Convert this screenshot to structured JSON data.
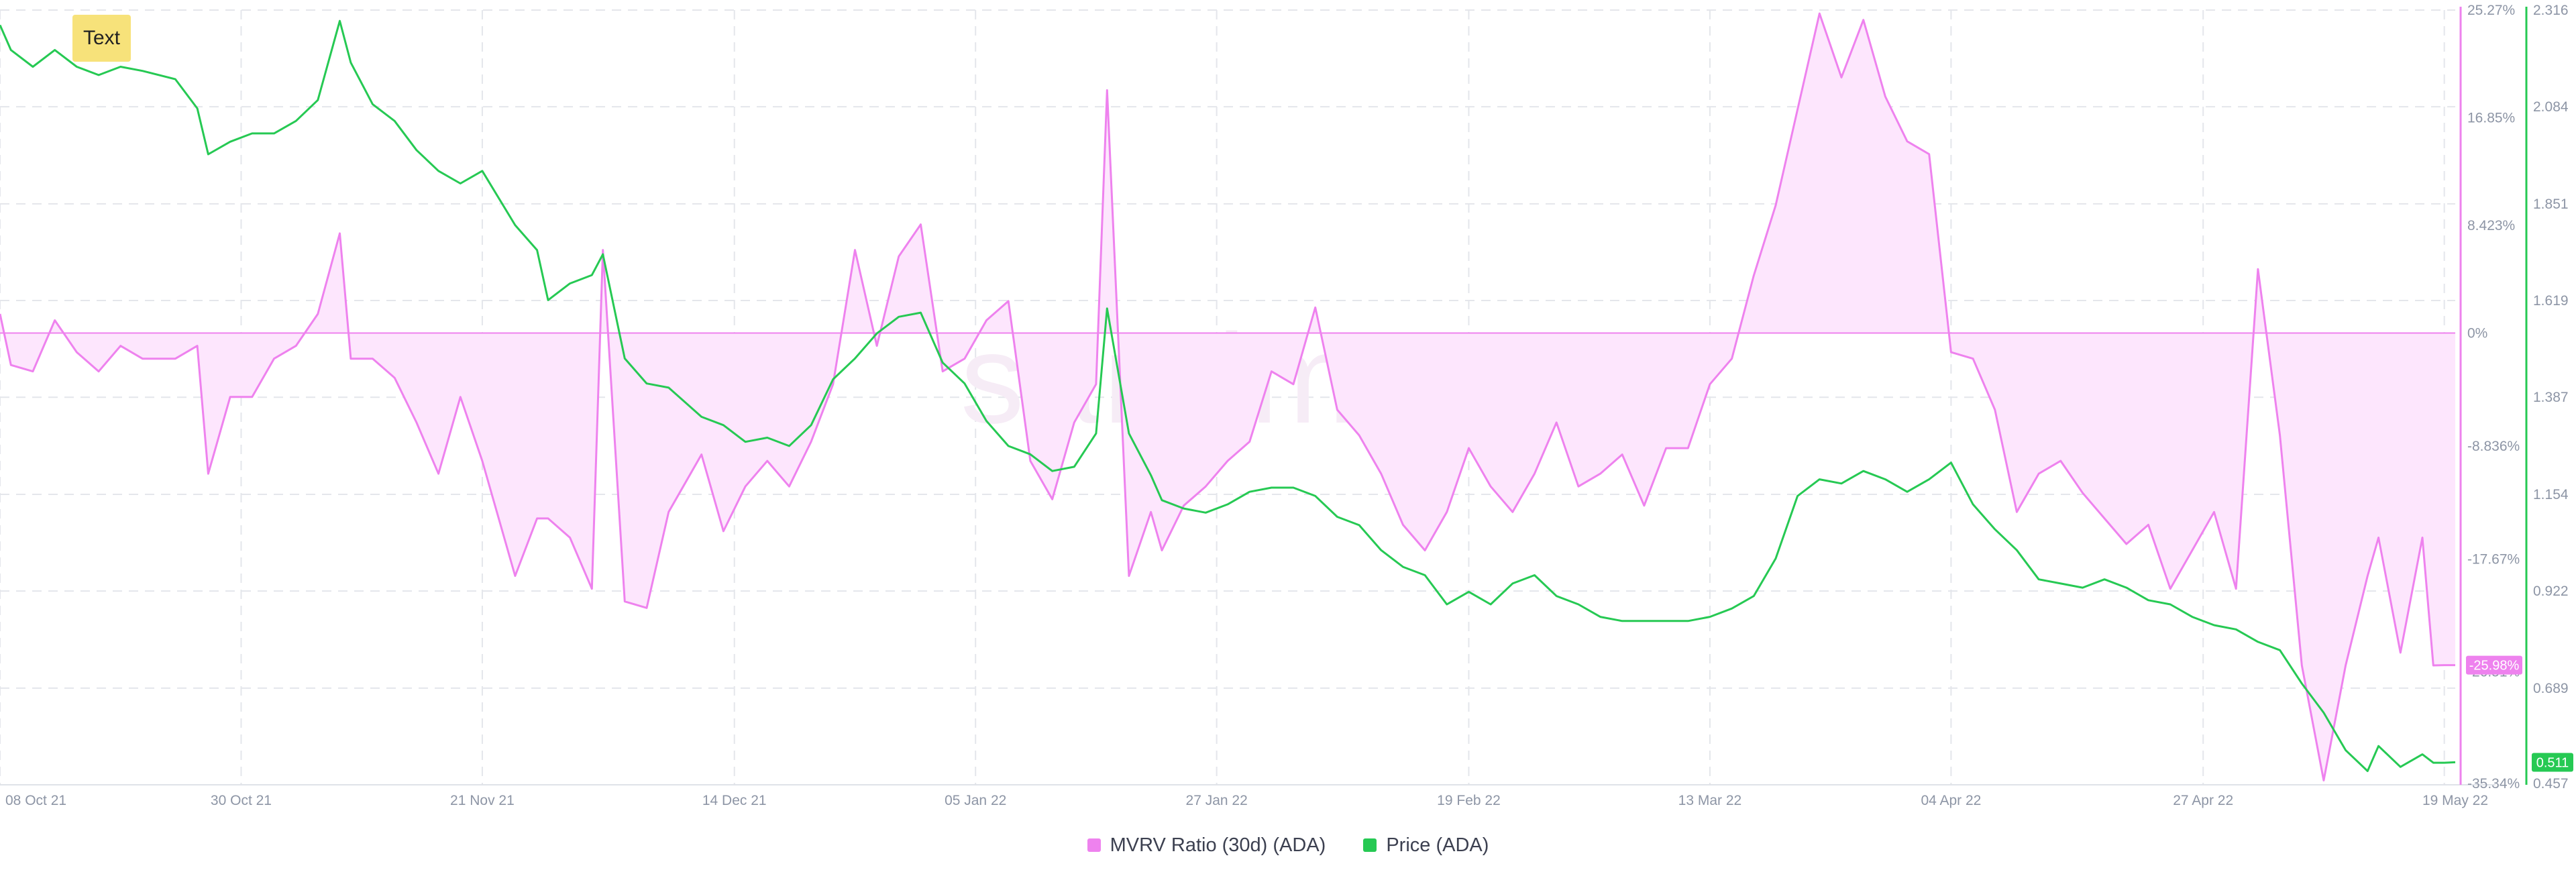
{
  "annotation": {
    "text": "Text"
  },
  "legend": {
    "items": [
      {
        "label": "MVRV Ratio (30d) (ADA)",
        "color": "#ee82ee"
      },
      {
        "label": "Price (ADA)",
        "color": "#26c953"
      }
    ]
  },
  "watermark": "santiment.",
  "colors": {
    "mvrv_line": "#ee82ee",
    "mvrv_fill": "#fde6fd",
    "price_line": "#26c953",
    "grid": "#e4e6eb",
    "axis_text": "#8d95a5",
    "axis_right_mvrv": "#ee82ee",
    "axis_right_price": "#26c953",
    "watermark": "#f6ecf6"
  },
  "chart_data": {
    "type": "line",
    "x_tick_labels": [
      "08 Oct 21",
      "30 Oct 21",
      "21 Nov 21",
      "14 Dec 21",
      "05 Jan 22",
      "27 Jan 22",
      "19 Feb 22",
      "13 Mar 22",
      "04 Apr 22",
      "27 Apr 22",
      "19 May 22"
    ],
    "x_range": [
      "2021-10-08",
      "2022-05-20"
    ],
    "grid": true,
    "legend_position": "bottom-center",
    "axes": {
      "mvrv": {
        "unit": "%",
        "ylim": [
          -35.34,
          25.27
        ],
        "tick_labels": [
          "25.27%",
          "16.85%",
          "8.423%",
          "0%",
          "-8.836%",
          "-17.67%",
          "-26.51%",
          "-35.34%"
        ],
        "tick_values": [
          25.27,
          16.85,
          8.423,
          0,
          -8.836,
          -17.67,
          -26.51,
          -35.34
        ]
      },
      "price": {
        "ylim": [
          0.457,
          2.316
        ],
        "tick_labels": [
          "2.316",
          "2.084",
          "1.851",
          "1.619",
          "1.387",
          "1.154",
          "0.922",
          "0.689",
          "0.457"
        ],
        "tick_values": [
          2.316,
          2.084,
          1.851,
          1.619,
          1.387,
          1.154,
          0.922,
          0.689,
          0.457
        ]
      }
    },
    "current_values": {
      "mvrv": "-25.98%",
      "price": "0.511"
    },
    "series": [
      {
        "name": "MVRV Ratio (30d) (ADA)",
        "axis": "mvrv",
        "type": "area",
        "x": [
          "2021-10-08",
          "2021-10-09",
          "2021-10-11",
          "2021-10-13",
          "2021-10-15",
          "2021-10-17",
          "2021-10-19",
          "2021-10-21",
          "2021-10-24",
          "2021-10-26",
          "2021-10-27",
          "2021-10-29",
          "2021-10-31",
          "2021-11-02",
          "2021-11-04",
          "2021-11-06",
          "2021-11-08",
          "2021-11-09",
          "2021-11-11",
          "2021-11-13",
          "2021-11-15",
          "2021-11-17",
          "2021-11-19",
          "2021-11-21",
          "2021-11-24",
          "2021-11-26",
          "2021-11-27",
          "2021-11-29",
          "2021-12-01",
          "2021-12-02",
          "2021-12-04",
          "2021-12-06",
          "2021-12-08",
          "2021-12-11",
          "2021-12-13",
          "2021-12-15",
          "2021-12-17",
          "2021-12-19",
          "2021-12-21",
          "2021-12-23",
          "2021-12-25",
          "2021-12-27",
          "2021-12-29",
          "2021-12-31",
          "2022-01-02",
          "2022-01-04",
          "2022-01-06",
          "2022-01-08",
          "2022-01-10",
          "2022-01-12",
          "2022-01-14",
          "2022-01-16",
          "2022-01-17",
          "2022-01-19",
          "2022-01-21",
          "2022-01-22",
          "2022-01-24",
          "2022-01-26",
          "2022-01-28",
          "2022-01-30",
          "2022-02-01",
          "2022-02-03",
          "2022-02-05",
          "2022-02-07",
          "2022-02-09",
          "2022-02-11",
          "2022-02-13",
          "2022-02-15",
          "2022-02-17",
          "2022-02-19",
          "2022-02-21",
          "2022-02-23",
          "2022-02-25",
          "2022-02-27",
          "2022-03-01",
          "2022-03-03",
          "2022-03-05",
          "2022-03-07",
          "2022-03-09",
          "2022-03-11",
          "2022-03-13",
          "2022-03-15",
          "2022-03-17",
          "2022-03-19",
          "2022-03-21",
          "2022-03-23",
          "2022-03-25",
          "2022-03-27",
          "2022-03-29",
          "2022-03-31",
          "2022-04-02",
          "2022-04-04",
          "2022-04-06",
          "2022-04-08",
          "2022-04-10",
          "2022-04-12",
          "2022-04-14",
          "2022-04-16",
          "2022-04-18",
          "2022-04-20",
          "2022-04-22",
          "2022-04-24",
          "2022-04-26",
          "2022-04-28",
          "2022-04-30",
          "2022-05-02",
          "2022-05-04",
          "2022-05-06",
          "2022-05-08",
          "2022-05-10",
          "2022-05-12",
          "2022-05-13",
          "2022-05-15",
          "2022-05-17",
          "2022-05-18",
          "2022-05-19",
          "2022-05-20"
        ],
        "values": [
          1.5,
          -2.5,
          -3.0,
          1.0,
          -1.5,
          -3.0,
          -1.0,
          -2.0,
          -2.0,
          -1.0,
          -11.0,
          -5.0,
          -5.0,
          -2.0,
          -1.0,
          1.5,
          7.8,
          -2.0,
          -2.0,
          -3.5,
          -7.0,
          -11.0,
          -5.0,
          -10.0,
          -19.0,
          -14.5,
          -14.5,
          -16.0,
          -20.0,
          6.5,
          -21.0,
          -21.5,
          -14.0,
          -9.5,
          -15.5,
          -12.0,
          -10.0,
          -12.0,
          -8.5,
          -4.0,
          6.5,
          -1.0,
          6.0,
          8.5,
          -3.0,
          -2.0,
          1.0,
          2.5,
          -10.0,
          -13.0,
          -7.0,
          -4.0,
          19.0,
          -19.0,
          -14.0,
          -17.0,
          -13.5,
          -12.0,
          -10.0,
          -8.5,
          -3.0,
          -4.0,
          2.0,
          -6.0,
          -8.0,
          -11.0,
          -15.0,
          -17.0,
          -14.0,
          -9.0,
          -12.0,
          -14.0,
          -11.0,
          -7.0,
          -12.0,
          -11.0,
          -9.5,
          -13.5,
          -9.0,
          -9.0,
          -4.0,
          -2.0,
          4.5,
          10.0,
          17.5,
          25.0,
          20.0,
          24.5,
          18.5,
          15.0,
          14.0,
          -1.5,
          -2.0,
          -6.0,
          -14.0,
          -11.0,
          -10.0,
          -12.5,
          -14.5,
          -16.5,
          -15.0,
          -20.0,
          -17.0,
          -14.0,
          -20.0,
          5.0,
          -8.0,
          -26.0,
          -35.0,
          -26.0,
          -19.0,
          -16.0,
          -25.0,
          -16.0,
          -26.0,
          -25.98,
          -25.98
        ]
      },
      {
        "name": "Price (ADA)",
        "axis": "price",
        "type": "line",
        "x": [
          "2021-10-08",
          "2021-10-09",
          "2021-10-11",
          "2021-10-13",
          "2021-10-15",
          "2021-10-17",
          "2021-10-19",
          "2021-10-21",
          "2021-10-24",
          "2021-10-26",
          "2021-10-27",
          "2021-10-29",
          "2021-10-31",
          "2021-11-02",
          "2021-11-04",
          "2021-11-06",
          "2021-11-08",
          "2021-11-09",
          "2021-11-11",
          "2021-11-13",
          "2021-11-15",
          "2021-11-17",
          "2021-11-19",
          "2021-11-21",
          "2021-11-24",
          "2021-11-26",
          "2021-11-27",
          "2021-11-29",
          "2021-12-01",
          "2021-12-02",
          "2021-12-04",
          "2021-12-06",
          "2021-12-08",
          "2021-12-11",
          "2021-12-13",
          "2021-12-15",
          "2021-12-17",
          "2021-12-19",
          "2021-12-21",
          "2021-12-23",
          "2021-12-25",
          "2021-12-27",
          "2021-12-29",
          "2021-12-31",
          "2022-01-02",
          "2022-01-04",
          "2022-01-06",
          "2022-01-08",
          "2022-01-10",
          "2022-01-12",
          "2022-01-14",
          "2022-01-16",
          "2022-01-17",
          "2022-01-19",
          "2022-01-21",
          "2022-01-22",
          "2022-01-24",
          "2022-01-26",
          "2022-01-28",
          "2022-01-30",
          "2022-02-01",
          "2022-02-03",
          "2022-02-05",
          "2022-02-07",
          "2022-02-09",
          "2022-02-11",
          "2022-02-13",
          "2022-02-15",
          "2022-02-17",
          "2022-02-19",
          "2022-02-21",
          "2022-02-23",
          "2022-02-25",
          "2022-02-27",
          "2022-03-01",
          "2022-03-03",
          "2022-03-05",
          "2022-03-07",
          "2022-03-09",
          "2022-03-11",
          "2022-03-13",
          "2022-03-15",
          "2022-03-17",
          "2022-03-19",
          "2022-03-21",
          "2022-03-23",
          "2022-03-25",
          "2022-03-27",
          "2022-03-29",
          "2022-03-31",
          "2022-04-02",
          "2022-04-04",
          "2022-04-06",
          "2022-04-08",
          "2022-04-10",
          "2022-04-12",
          "2022-04-14",
          "2022-04-16",
          "2022-04-18",
          "2022-04-20",
          "2022-04-22",
          "2022-04-24",
          "2022-04-26",
          "2022-04-28",
          "2022-04-30",
          "2022-05-02",
          "2022-05-04",
          "2022-05-06",
          "2022-05-08",
          "2022-05-10",
          "2022-05-12",
          "2022-05-13",
          "2022-05-15",
          "2022-05-17",
          "2022-05-18",
          "2022-05-19",
          "2022-05-20"
        ],
        "values": [
          2.28,
          2.22,
          2.18,
          2.22,
          2.18,
          2.16,
          2.18,
          2.17,
          2.15,
          2.08,
          1.97,
          2.0,
          2.02,
          2.02,
          2.05,
          2.1,
          2.29,
          2.19,
          2.09,
          2.05,
          1.98,
          1.93,
          1.9,
          1.93,
          1.8,
          1.74,
          1.62,
          1.66,
          1.68,
          1.73,
          1.48,
          1.42,
          1.41,
          1.34,
          1.32,
          1.28,
          1.29,
          1.27,
          1.32,
          1.43,
          1.48,
          1.54,
          1.58,
          1.59,
          1.47,
          1.42,
          1.33,
          1.27,
          1.25,
          1.21,
          1.22,
          1.3,
          1.6,
          1.3,
          1.2,
          1.14,
          1.12,
          1.11,
          1.13,
          1.16,
          1.17,
          1.17,
          1.15,
          1.1,
          1.08,
          1.02,
          0.98,
          0.96,
          0.89,
          0.92,
          0.89,
          0.94,
          0.96,
          0.91,
          0.89,
          0.86,
          0.85,
          0.85,
          0.85,
          0.85,
          0.86,
          0.88,
          0.91,
          1.0,
          1.15,
          1.19,
          1.18,
          1.21,
          1.19,
          1.16,
          1.19,
          1.23,
          1.13,
          1.07,
          1.02,
          0.95,
          0.94,
          0.93,
          0.95,
          0.93,
          0.9,
          0.89,
          0.86,
          0.84,
          0.83,
          0.8,
          0.78,
          0.7,
          0.63,
          0.54,
          0.49,
          0.55,
          0.5,
          0.53,
          0.51,
          0.51,
          0.511
        ]
      }
    ]
  }
}
